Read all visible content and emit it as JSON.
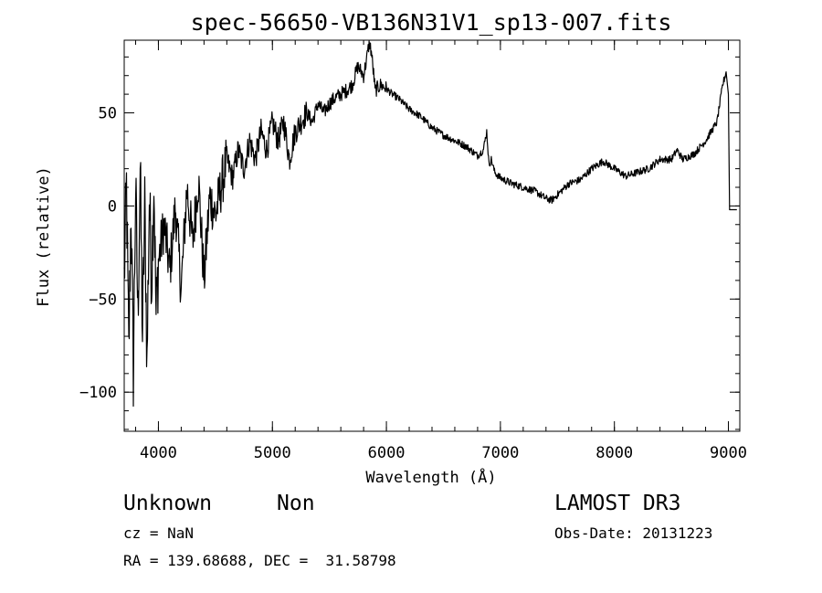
{
  "chart_data": {
    "type": "line",
    "title": "spec-56650-VB136N31V1_sp13-007.fits",
    "xlabel": "Wavelength (Å)",
    "ylabel": "Flux (relative)",
    "xlim": [
      3700,
      9100
    ],
    "ylim": [
      -121,
      89
    ],
    "xticks": [
      4000,
      5000,
      6000,
      7000,
      8000,
      9000
    ],
    "xtick_labels": [
      "4000",
      "5000",
      "6000",
      "7000",
      "8000",
      "9000"
    ],
    "yticks": [
      -100,
      -50,
      0,
      50
    ],
    "ytick_labels": [
      "−100",
      "−50",
      "0",
      "50"
    ],
    "xminor_step": 200,
    "yminor_step": 10,
    "grid": false,
    "series": [
      {
        "x": [
          3700,
          3720,
          3740,
          3760,
          3780,
          3800,
          3820,
          3840,
          3860,
          3880,
          3900,
          3920,
          3940,
          3960,
          3980,
          4000,
          4050,
          4100,
          4150,
          4200,
          4250,
          4300,
          4350,
          4400,
          4450,
          4500,
          4550,
          4600,
          4650,
          4700,
          4750,
          4800,
          4850,
          4900,
          4950,
          5000,
          5050,
          5100,
          5150,
          5200,
          5250,
          5300,
          5350,
          5400,
          5450,
          5500,
          5550,
          5600,
          5650,
          5700,
          5750,
          5800,
          5830,
          5850,
          5870,
          5880,
          5890,
          5900,
          5950,
          6000,
          6050,
          6100,
          6200,
          6300,
          6400,
          6500,
          6600,
          6700,
          6800,
          6850,
          6880,
          6900,
          6920,
          6950,
          7000,
          7100,
          7200,
          7300,
          7400,
          7450,
          7500,
          7600,
          7700,
          7800,
          7900,
          8000,
          8100,
          8200,
          8300,
          8400,
          8500,
          8550,
          8600,
          8700,
          8800,
          8850,
          8900,
          8950,
          8980,
          9000,
          9010
        ],
        "y": [
          -40,
          10,
          -80,
          0,
          -90,
          10,
          -60,
          20,
          -70,
          0,
          -85,
          5,
          -40,
          15,
          -60,
          -30,
          -10,
          -35,
          0,
          -45,
          10,
          -20,
          15,
          -40,
          5,
          -5,
          10,
          25,
          15,
          30,
          20,
          35,
          25,
          40,
          30,
          45,
          35,
          45,
          25,
          40,
          45,
          50,
          45,
          55,
          50,
          55,
          58,
          60,
          62,
          65,
          75,
          70,
          80,
          88,
          82,
          75,
          70,
          62,
          65,
          63,
          60,
          58,
          52,
          48,
          42,
          38,
          35,
          32,
          27,
          30,
          40,
          22,
          25,
          18,
          15,
          12,
          10,
          8,
          4,
          3,
          6,
          12,
          14,
          20,
          24,
          20,
          16,
          18,
          20,
          25,
          25,
          30,
          25,
          28,
          35,
          40,
          45,
          65,
          72,
          60,
          0
        ]
      }
    ]
  },
  "info": {
    "object_class": "Unknown",
    "object_subclass": "Non",
    "survey": "LAMOST DR3",
    "cz": "cz = NaN",
    "obs_date": "Obs-Date: 20131223",
    "coords": "RA = 139.68688, DEC =  31.58798"
  }
}
